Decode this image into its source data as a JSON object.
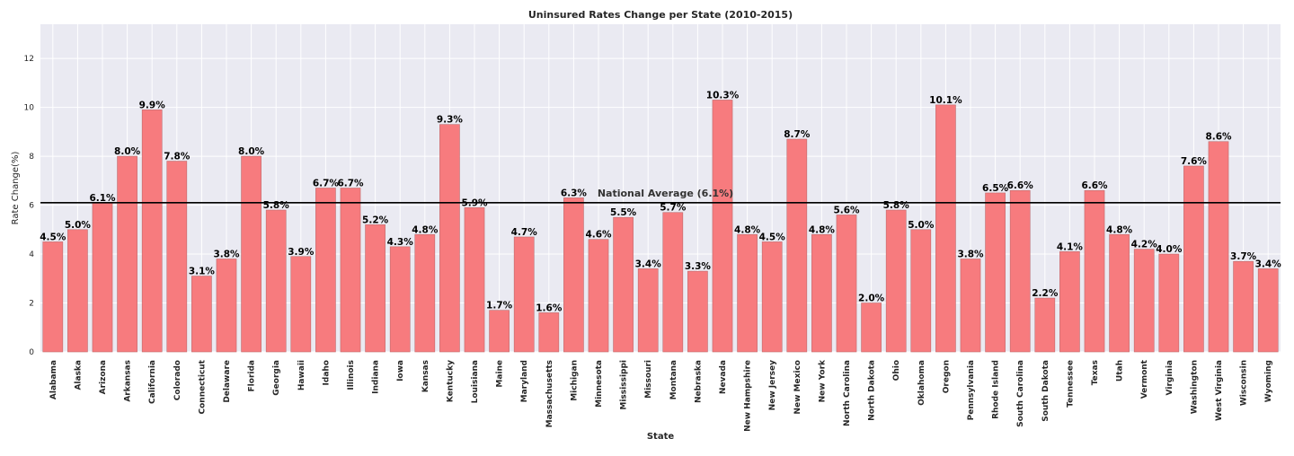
{
  "chart_data": {
    "type": "bar",
    "title": "Uninsured Rates Change per State (2010-2015)",
    "xlabel": "State",
    "ylabel": "Rate Change(%)",
    "ylim": [
      0,
      13.4
    ],
    "yticks": [
      0,
      2,
      4,
      6,
      8,
      10,
      12
    ],
    "grid": true,
    "categories": [
      "Alabama",
      "Alaska",
      "Arizona",
      "Arkansas",
      "California",
      "Colorado",
      "Connecticut",
      "Delaware",
      "Florida",
      "Georgia",
      "Hawaii",
      "Idaho",
      "Illinois",
      "Indiana",
      "Iowa",
      "Kansas",
      "Kentucky",
      "Louisiana",
      "Maine",
      "Maryland",
      "Massachusetts",
      "Michigan",
      "Minnesota",
      "Mississippi",
      "Missouri",
      "Montana",
      "Nebraska",
      "Nevada",
      "New Hampshire",
      "New Jersey",
      "New Mexico",
      "New York",
      "North Carolina",
      "North Dakota",
      "Ohio",
      "Oklahoma",
      "Oregon",
      "Pennsylvania",
      "Rhode Island",
      "South Carolina",
      "South Dakota",
      "Tennessee",
      "Texas",
      "Utah",
      "Vermont",
      "Virginia",
      "Washington",
      "West Virginia",
      "Wisconsin",
      "Wyoming"
    ],
    "values": [
      4.5,
      5.0,
      6.1,
      8.0,
      9.9,
      7.8,
      3.1,
      3.8,
      8.0,
      5.8,
      3.9,
      6.7,
      6.7,
      5.2,
      4.3,
      4.8,
      9.3,
      5.9,
      1.7,
      4.7,
      1.6,
      6.3,
      4.6,
      5.5,
      3.4,
      5.7,
      3.3,
      10.3,
      4.8,
      4.5,
      8.7,
      4.8,
      5.6,
      2.0,
      5.8,
      5.0,
      10.1,
      3.8,
      6.5,
      6.6,
      2.2,
      4.1,
      6.6,
      4.8,
      4.2,
      4.0,
      7.6,
      8.6,
      3.7,
      3.4
    ],
    "data_labels": [
      "4.5%",
      "5.0%",
      "6.1%",
      "8.0%",
      "9.9%",
      "7.8%",
      "3.1%",
      "3.8%",
      "8.0%",
      "5.8%",
      "3.9%",
      "6.7%",
      "6.7%",
      "5.2%",
      "4.3%",
      "4.8%",
      "9.3%",
      "5.9%",
      "1.7%",
      "4.7%",
      "1.6%",
      "6.3%",
      "4.6%",
      "5.5%",
      "3.4%",
      "5.7%",
      "3.3%",
      "10.3%",
      "4.8%",
      "4.5%",
      "8.7%",
      "4.8%",
      "5.6%",
      "2.0%",
      "5.8%",
      "5.0%",
      "10.1%",
      "3.8%",
      "6.5%",
      "6.6%",
      "2.2%",
      "4.1%",
      "6.6%",
      "4.8%",
      "4.2%",
      "4.0%",
      "7.6%",
      "8.6%",
      "3.7%",
      "3.4%"
    ],
    "reference_line": {
      "value": 6.1,
      "label": "National Average (6.1%)"
    },
    "colors": {
      "bar": "#f77b7e",
      "bar_edge": "#c06a6c",
      "plot_bg": "#eaeaf2",
      "grid": "#ffffff",
      "reference_line": "#000000"
    }
  }
}
